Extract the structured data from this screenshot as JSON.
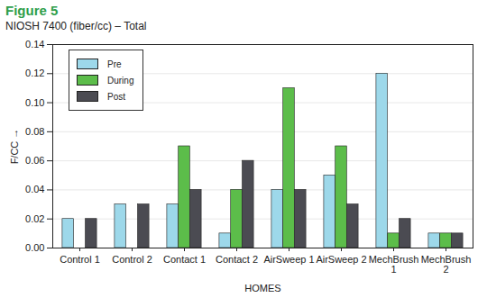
{
  "chart_data": {
    "type": "bar",
    "title": "Figure 5",
    "subtitle": "NIOSH 7400 (fiber/cc) – Total",
    "x_label": "HOMES",
    "y_label": "F/CC",
    "categories": [
      "Control 1",
      "Control 2",
      "Contact 1",
      "Contact 2",
      "AirSweep 1",
      "AirSweep 2",
      "MechBrush 1",
      "MechBrush 2"
    ],
    "series": [
      {
        "name": "Pre",
        "color": "#9dd8ea",
        "values": [
          0.02,
          0.03,
          0.03,
          0.01,
          0.04,
          0.05,
          0.12,
          0.01
        ]
      },
      {
        "name": "During",
        "color": "#5cbd4a",
        "values": [
          null,
          null,
          0.07,
          0.04,
          0.11,
          0.07,
          0.01,
          0.01
        ]
      },
      {
        "name": "Post",
        "color": "#4b4b52",
        "values": [
          0.02,
          0.03,
          0.04,
          0.06,
          0.04,
          0.03,
          0.02,
          0.01
        ]
      }
    ],
    "ylim": [
      0,
      0.14
    ],
    "yticks": [
      {
        "value": 0,
        "label": "0.00"
      },
      0.02,
      0.04,
      0.06,
      0.08,
      {
        "value": 0.1,
        "label": "0.10"
      },
      0.12,
      0.14
    ],
    "grid": true,
    "legend": "top-left"
  }
}
